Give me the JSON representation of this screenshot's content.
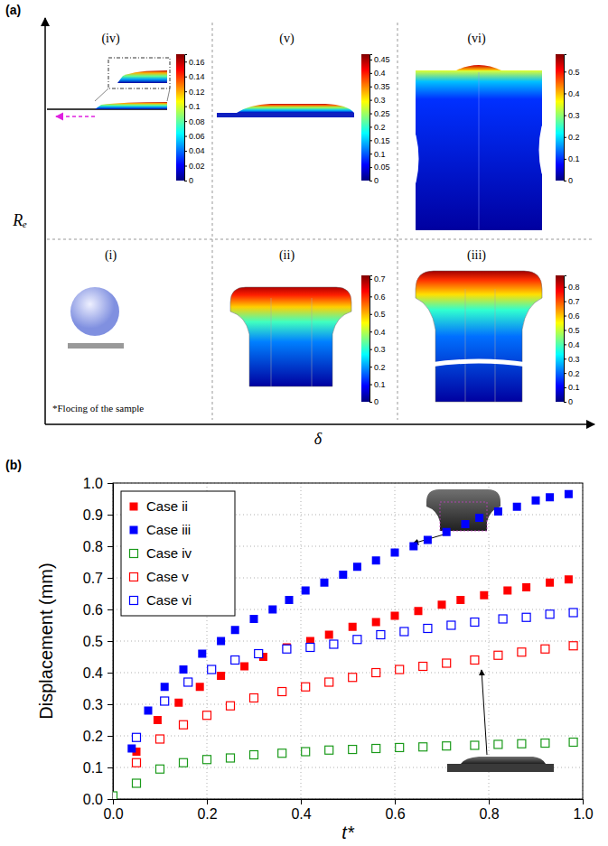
{
  "chart_data": [
    {
      "type": "diagram",
      "panel_label": "(a)",
      "x_label": "δ",
      "y_label": "Rₑ",
      "cells": [
        {
          "label": "(i)",
          "annotation": "*Flocing of the sample"
        },
        {
          "label": "(ii)",
          "colorbar": {
            "range": [
              0,
              0.72
            ],
            "ticks": [
              0,
              0.1,
              0.2,
              0.3,
              0.4,
              0.5,
              0.6,
              0.7
            ]
          }
        },
        {
          "label": "(iii)",
          "colorbar": {
            "range": [
              0,
              0.88
            ],
            "ticks": [
              0,
              0.1,
              0.2,
              0.3,
              0.4,
              0.5,
              0.6,
              0.7,
              0.8
            ]
          }
        },
        {
          "label": "(iv)",
          "colorbar": {
            "range": [
              0,
              0.17
            ],
            "ticks": [
              0,
              0.02,
              0.04,
              0.06,
              0.08,
              0.1,
              0.12,
              0.14,
              0.16
            ]
          }
        },
        {
          "label": "(v)",
          "colorbar": {
            "range": [
              0,
              0.47
            ],
            "ticks": [
              0,
              0.05,
              0.1,
              0.15,
              0.2,
              0.25,
              0.3,
              0.35,
              0.4,
              0.45
            ]
          }
        },
        {
          "label": "(vi)",
          "colorbar": {
            "range": [
              0,
              0.58
            ],
            "ticks": [
              0,
              0.1,
              0.2,
              0.3,
              0.4,
              0.5
            ]
          }
        }
      ]
    },
    {
      "type": "scatter",
      "panel_label": "(b)",
      "x_label": "t*",
      "y_label": "Displacement (mm)",
      "xlim": [
        0,
        1
      ],
      "ylim": [
        0,
        1
      ],
      "xticks": [
        {
          "value": 0,
          "label": "0.0"
        },
        {
          "value": 0.2,
          "label": "0.2"
        },
        {
          "value": 0.4,
          "label": "0.4"
        },
        {
          "value": 0.6,
          "label": "0.6"
        },
        {
          "value": 0.8,
          "label": "0.8"
        },
        {
          "value": 1,
          "label": "1.0"
        }
      ],
      "yticks": [
        {
          "value": 0,
          "label": "0.0"
        },
        {
          "value": 0.1,
          "label": "0.1"
        },
        {
          "value": 0.2,
          "label": "0.2"
        },
        {
          "value": 0.3,
          "label": "0.3"
        },
        {
          "value": 0.4,
          "label": "0.4"
        },
        {
          "value": 0.5,
          "label": "0.5"
        },
        {
          "value": 0.6,
          "label": "0.6"
        },
        {
          "value": 0.7,
          "label": "0.7"
        },
        {
          "value": 0.8,
          "label": "0.8"
        },
        {
          "value": 0.9,
          "label": "0.9"
        },
        {
          "value": 1,
          "label": "1.0"
        }
      ],
      "grid": true,
      "legend": "top-left",
      "series": [
        {
          "name": "Case ii",
          "color": "#ff0000",
          "marker": "square",
          "x": [
            0.05,
            0.095,
            0.14,
            0.185,
            0.23,
            0.28,
            0.32,
            0.37,
            0.42,
            0.46,
            0.51,
            0.56,
            0.6,
            0.65,
            0.7,
            0.74,
            0.79,
            0.84,
            0.88,
            0.93,
            0.97
          ],
          "values": [
            0.15,
            0.25,
            0.305,
            0.355,
            0.39,
            0.42,
            0.45,
            0.48,
            0.5,
            0.52,
            0.545,
            0.56,
            0.58,
            0.595,
            0.615,
            0.63,
            0.645,
            0.66,
            0.67,
            0.685,
            0.695
          ]
        },
        {
          "name": "Case iii",
          "color": "#0000ff",
          "marker": "square",
          "x": [
            0.04,
            0.075,
            0.11,
            0.15,
            0.19,
            0.23,
            0.26,
            0.3,
            0.34,
            0.375,
            0.41,
            0.45,
            0.49,
            0.52,
            0.56,
            0.6,
            0.64,
            0.67,
            0.71,
            0.75,
            0.78,
            0.82,
            0.86,
            0.9,
            0.93,
            0.97
          ],
          "values": [
            0.16,
            0.28,
            0.355,
            0.41,
            0.46,
            0.5,
            0.535,
            0.57,
            0.6,
            0.63,
            0.66,
            0.685,
            0.71,
            0.735,
            0.755,
            0.78,
            0.8,
            0.82,
            0.845,
            0.87,
            0.89,
            0.91,
            0.925,
            0.945,
            0.955,
            0.965
          ]
        },
        {
          "name": "Case iv",
          "color": "#1a9a1a",
          "marker": "square-open",
          "x": [
            0,
            0.05,
            0.1,
            0.15,
            0.2,
            0.25,
            0.3,
            0.36,
            0.41,
            0.46,
            0.51,
            0.56,
            0.61,
            0.66,
            0.71,
            0.77,
            0.82,
            0.87,
            0.92,
            0.98
          ],
          "values": [
            0.01,
            0.05,
            0.095,
            0.115,
            0.125,
            0.13,
            0.14,
            0.145,
            0.15,
            0.155,
            0.157,
            0.16,
            0.163,
            0.165,
            0.168,
            0.17,
            0.173,
            0.175,
            0.177,
            0.18
          ]
        },
        {
          "name": "Case v",
          "color": "#ff0000",
          "marker": "square-open",
          "x": [
            0.05,
            0.1,
            0.15,
            0.2,
            0.25,
            0.3,
            0.36,
            0.41,
            0.46,
            0.51,
            0.56,
            0.61,
            0.66,
            0.71,
            0.77,
            0.82,
            0.87,
            0.92,
            0.98
          ],
          "values": [
            0.115,
            0.19,
            0.235,
            0.265,
            0.295,
            0.32,
            0.34,
            0.355,
            0.37,
            0.385,
            0.4,
            0.41,
            0.42,
            0.43,
            0.44,
            0.455,
            0.465,
            0.475,
            0.485
          ]
        },
        {
          "name": "Case vi",
          "color": "#0000ff",
          "marker": "square-open",
          "x": [
            0.05,
            0.11,
            0.16,
            0.21,
            0.26,
            0.31,
            0.37,
            0.42,
            0.47,
            0.52,
            0.57,
            0.62,
            0.67,
            0.72,
            0.77,
            0.83,
            0.88,
            0.93,
            0.98
          ],
          "values": [
            0.195,
            0.31,
            0.37,
            0.41,
            0.44,
            0.46,
            0.475,
            0.48,
            0.49,
            0.505,
            0.52,
            0.53,
            0.54,
            0.55,
            0.56,
            0.57,
            0.575,
            0.585,
            0.59
          ]
        }
      ]
    }
  ]
}
